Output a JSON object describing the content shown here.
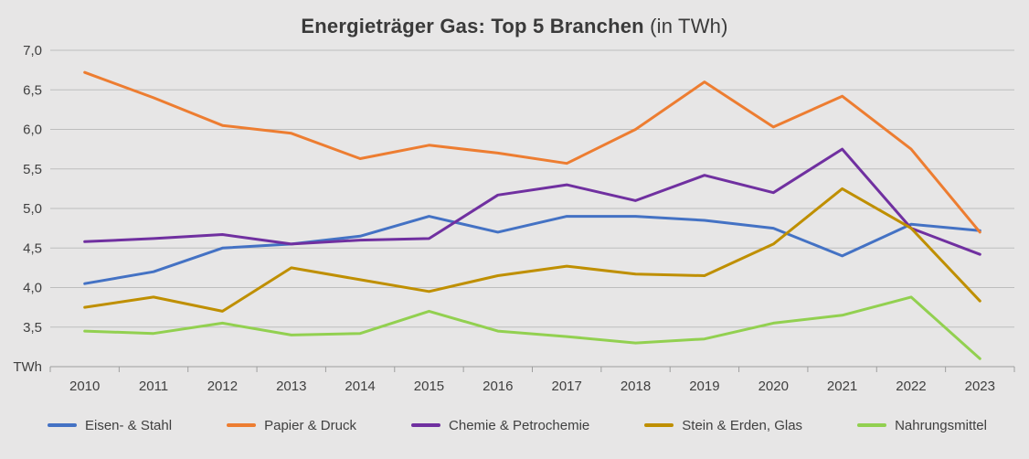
{
  "title": {
    "main": "Energieträger Gas: Top 5 Branchen",
    "suffix": " (in TWh)"
  },
  "chart_data": {
    "type": "line",
    "x": [
      "2010",
      "2011",
      "2012",
      "2013",
      "2014",
      "2015",
      "2016",
      "2017",
      "2018",
      "2019",
      "2020",
      "2021",
      "2022",
      "2023"
    ],
    "ylim": [
      3.0,
      7.0
    ],
    "ytick_step": 0.5,
    "ytick_labels_desc": [
      "7,0",
      "6,5",
      "6,0",
      "5,5",
      "5,0",
      "4,5",
      "4,0",
      "3,5"
    ],
    "y_unit_label": "TWh",
    "grid": true,
    "legend_position": "bottom",
    "series": [
      {
        "name": "Eisen- & Stahl",
        "color": "#4472c4",
        "values": [
          4.05,
          4.2,
          4.5,
          4.55,
          4.65,
          4.9,
          4.7,
          4.9,
          4.9,
          4.85,
          4.75,
          4.4,
          4.8,
          4.72
        ]
      },
      {
        "name": "Papier & Druck",
        "color": "#ed7d31",
        "values": [
          6.72,
          6.4,
          6.05,
          5.95,
          5.63,
          5.8,
          5.7,
          5.57,
          6.0,
          6.6,
          6.03,
          6.42,
          5.75,
          4.7
        ]
      },
      {
        "name": "Chemie & Petrochemie",
        "color": "#7030a0",
        "values": [
          4.58,
          4.62,
          4.67,
          4.55,
          4.6,
          4.62,
          5.17,
          5.3,
          5.1,
          5.42,
          5.2,
          5.75,
          4.75,
          4.42
        ]
      },
      {
        "name": "Stein & Erden, Glas",
        "color": "#bf8f00",
        "values": [
          3.75,
          3.88,
          3.7,
          4.25,
          4.1,
          3.95,
          4.15,
          4.27,
          4.17,
          4.15,
          4.55,
          5.25,
          4.75,
          3.83
        ]
      },
      {
        "name": "Nahrungsmittel",
        "color": "#92d050",
        "values": [
          3.45,
          3.42,
          3.55,
          3.4,
          3.42,
          3.7,
          3.45,
          3.38,
          3.3,
          3.35,
          3.55,
          3.65,
          3.88,
          3.1
        ]
      }
    ]
  },
  "style": {
    "background": "#e7e6e6",
    "gridline_color": "#bdbdbd",
    "axis_line_color": "#9e9e9e",
    "text_color": "#3f3f3f"
  }
}
